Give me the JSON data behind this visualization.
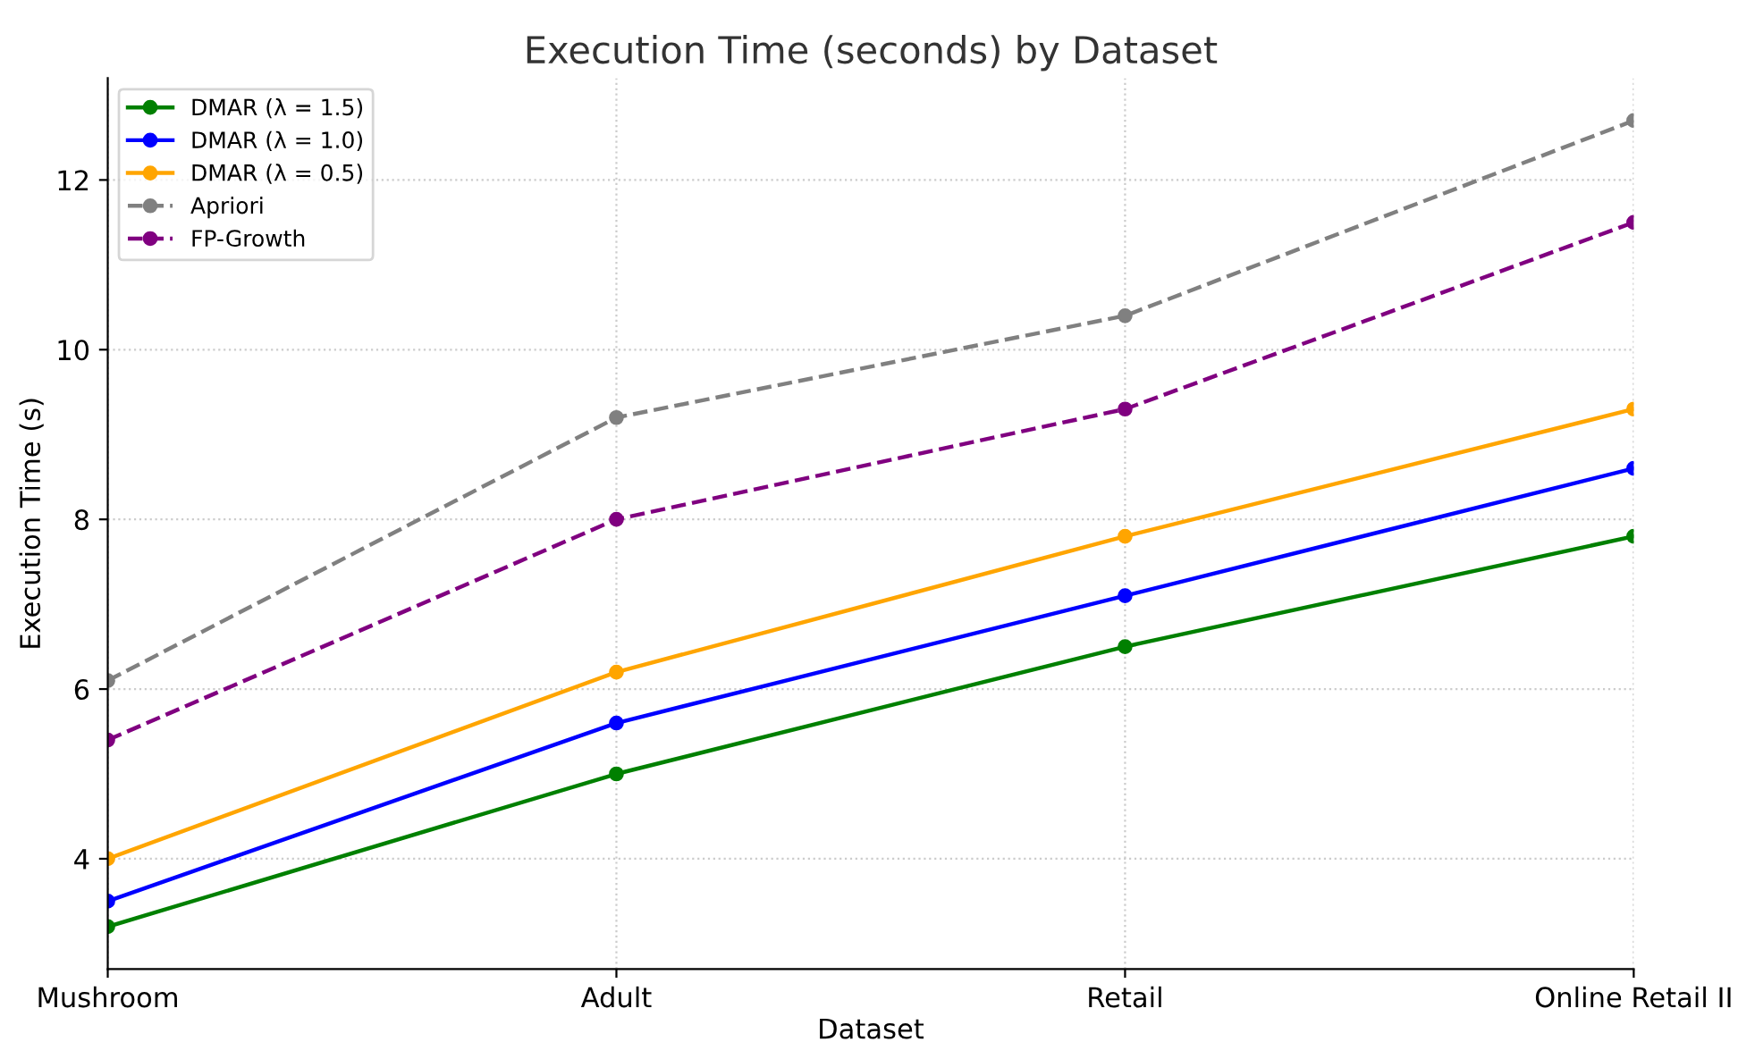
{
  "chart_data": {
    "type": "line",
    "title": "Execution Time (seconds) by Dataset",
    "xlabel": "Dataset",
    "ylabel": "Execution Time (s)",
    "categories": [
      "Mushroom",
      "Adult",
      "Retail",
      "Online Retail II"
    ],
    "series": [
      {
        "name": "DMAR (λ = 1.5)",
        "color": "#008000",
        "values": [
          3.2,
          5.0,
          6.5,
          7.8
        ],
        "line_style": "solid"
      },
      {
        "name": "DMAR (λ = 1.0)",
        "color": "#0000ff",
        "values": [
          3.5,
          5.6,
          7.1,
          8.6
        ],
        "line_style": "solid"
      },
      {
        "name": "DMAR (λ = 0.5)",
        "color": "#ffa500",
        "values": [
          4.0,
          6.2,
          7.8,
          9.3
        ],
        "line_style": "solid"
      },
      {
        "name": "Apriori",
        "color": "#808080",
        "values": [
          6.1,
          9.2,
          10.4,
          12.7
        ],
        "line_style": "dashed"
      },
      {
        "name": "FP-Growth",
        "color": "#800080",
        "values": [
          5.4,
          8.0,
          9.3,
          11.5
        ],
        "line_style": "dashed"
      }
    ],
    "ylim": [
      2.7,
      13.2
    ],
    "yticks": [
      4,
      6,
      8,
      10,
      12
    ],
    "grid": true,
    "legend": "top left",
    "marker": "circle"
  }
}
